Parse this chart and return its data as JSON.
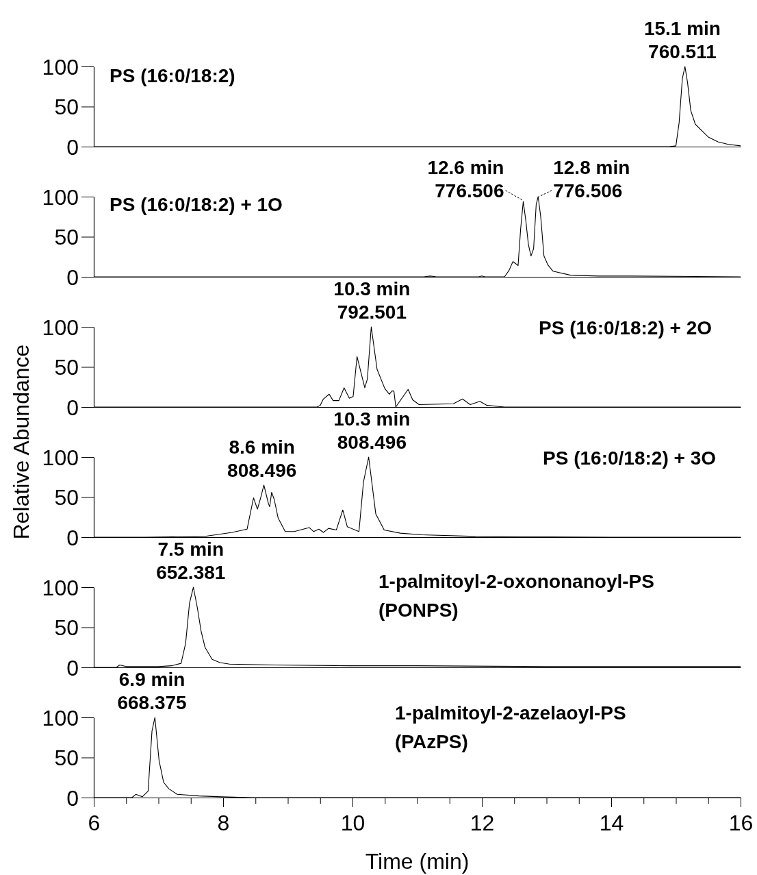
{
  "chart_data": [
    {
      "type": "line",
      "title": "PS (16:0/18:2)",
      "xlim": [
        6,
        16
      ],
      "ylim": [
        0,
        100
      ],
      "yticks": [
        0,
        50,
        100
      ],
      "tick_labels": "y",
      "annotations": [
        {
          "text": "15.1 min\n760.511",
          "x": 15.1,
          "y": 100
        }
      ],
      "series": [
        {
          "color": "#000000",
          "x": [
            6,
            14.9,
            15.0,
            15.05,
            15.1,
            15.14,
            15.18,
            15.23,
            15.3,
            15.4,
            15.5,
            15.65,
            15.8,
            16
          ],
          "values": [
            0,
            0,
            1,
            30,
            85,
            100,
            80,
            45,
            28,
            20,
            12,
            6,
            3,
            1
          ]
        }
      ]
    },
    {
      "type": "line",
      "title": "PS (16:0/18:2) + 1O",
      "xlim": [
        6,
        16
      ],
      "ylim": [
        0,
        100
      ],
      "yticks": [
        0,
        50,
        100
      ],
      "tick_labels": "y",
      "annotations": [
        {
          "text": "12.6 min\n776.506",
          "x": 12.64,
          "y": 94
        },
        {
          "text": "12.8 min\n776.506",
          "x": 12.87,
          "y": 100
        }
      ],
      "series": [
        {
          "color": "#000000",
          "x": [
            6,
            11.1,
            11.2,
            11.3,
            11.95,
            12.0,
            12.05,
            12.35,
            12.42,
            12.48,
            12.53,
            12.56,
            12.6,
            12.64,
            12.68,
            12.72,
            12.76,
            12.8,
            12.84,
            12.87,
            12.91,
            12.96,
            13.02,
            13.1,
            13.37,
            13.8,
            14.3,
            16
          ],
          "values": [
            0,
            0,
            1,
            0,
            0,
            1,
            0,
            0,
            8,
            19,
            16,
            14,
            60,
            94,
            70,
            40,
            26,
            35,
            90,
            100,
            75,
            26,
            15,
            7,
            2,
            1,
            1,
            0
          ]
        }
      ]
    },
    {
      "type": "line",
      "title": "PS (16:0/18:2) + 2O",
      "xlim": [
        6,
        16
      ],
      "ylim": [
        0,
        100
      ],
      "yticks": [
        0,
        50,
        100
      ],
      "tick_labels": "y",
      "ylabel": "Relative Abundance",
      "annotations": [
        {
          "text": "10.3 min\n792.501",
          "x": 10.3,
          "y": 100
        }
      ],
      "series": [
        {
          "color": "#000000",
          "x": [
            6,
            9.45,
            9.5,
            9.55,
            9.64,
            9.7,
            9.79,
            9.87,
            9.95,
            10.01,
            10.07,
            10.19,
            10.23,
            10.29,
            10.38,
            10.5,
            10.57,
            10.61,
            10.64,
            10.67,
            10.73,
            10.86,
            10.93,
            11.03,
            11.56,
            11.7,
            11.82,
            11.97,
            12.08,
            12.35,
            16
          ],
          "values": [
            0,
            0,
            2,
            10,
            16,
            8,
            8,
            24,
            11,
            13,
            63,
            24,
            35,
            100,
            47,
            23,
            16,
            20,
            20,
            0,
            7,
            22,
            9,
            3,
            4,
            10,
            3,
            7,
            2,
            0,
            0
          ]
        }
      ]
    },
    {
      "type": "line",
      "title": "PS (16:0/18:2) + 3O",
      "xlim": [
        6,
        16
      ],
      "ylim": [
        0,
        100
      ],
      "yticks": [
        0,
        50,
        100
      ],
      "tick_labels": "y",
      "annotations": [
        {
          "text": "8.6 min\n808.496",
          "x": 8.6,
          "y": 65
        },
        {
          "text": "10.3 min\n808.496",
          "x": 10.3,
          "y": 100
        }
      ],
      "series": [
        {
          "color": "#000000",
          "x": [
            6,
            6.8,
            7.72,
            8.14,
            8.37,
            8.47,
            8.53,
            8.58,
            8.63,
            8.7,
            8.72,
            8.75,
            8.79,
            8.85,
            8.96,
            9.1,
            9.33,
            9.4,
            9.48,
            9.55,
            9.63,
            9.75,
            9.85,
            9.92,
            10.1,
            10.17,
            10.25,
            10.36,
            10.49,
            10.74,
            11.07,
            11.9,
            14,
            16
          ],
          "values": [
            0,
            0,
            1,
            6,
            10,
            49,
            35,
            49,
            65,
            42,
            38,
            56,
            47,
            24,
            7,
            7,
            12,
            7,
            10,
            6,
            11,
            9,
            34,
            13,
            7,
            69,
            100,
            29,
            9,
            5,
            3,
            1,
            0,
            0
          ]
        }
      ]
    },
    {
      "type": "line",
      "title": "1-palmitoyl-2-oxononanoyl-PS",
      "subtitle": "(PONPS)",
      "xlim": [
        6,
        16
      ],
      "ylim": [
        0,
        100
      ],
      "yticks": [
        0,
        50,
        100
      ],
      "tick_labels": "y",
      "annotations": [
        {
          "text": "7.5 min\n652.381",
          "x": 7.5,
          "y": 100
        }
      ],
      "series": [
        {
          "color": "#000000",
          "x": [
            6,
            6.35,
            6.4,
            6.5,
            7.0,
            7.2,
            7.35,
            7.42,
            7.48,
            7.54,
            7.6,
            7.66,
            7.72,
            7.83,
            7.95,
            8.1,
            8.8,
            10,
            11,
            13,
            15,
            16
          ],
          "values": [
            0,
            0,
            3,
            1,
            1,
            2,
            5,
            30,
            80,
            100,
            75,
            45,
            25,
            10,
            6,
            4,
            3,
            2,
            2,
            1,
            1,
            1
          ]
        }
      ]
    },
    {
      "type": "line",
      "title": "1-palmitoyl-2-azelaoyl-PS",
      "subtitle": "(PAzPS)",
      "xlabel": "Time (min)",
      "xlim": [
        6,
        16
      ],
      "ylim": [
        0,
        100
      ],
      "xticks": [
        6,
        {
          "value": 6.5,
          "label": null
        },
        {
          "value": 7,
          "label": null
        },
        {
          "value": 7.5,
          "label": null
        },
        8,
        {
          "value": 8.5,
          "label": null
        },
        {
          "value": 9,
          "label": null
        },
        {
          "value": 9.5,
          "label": null
        },
        10,
        {
          "value": 10.5,
          "label": null
        },
        {
          "value": 11,
          "label": null
        },
        {
          "value": 11.5,
          "label": null
        },
        12,
        {
          "value": 12.5,
          "label": null
        },
        {
          "value": 13,
          "label": null
        },
        {
          "value": 13.5,
          "label": null
        },
        14,
        {
          "value": 14.5,
          "label": null
        },
        {
          "value": 15,
          "label": null
        },
        {
          "value": 15.5,
          "label": null
        },
        16
      ],
      "yticks": [
        0,
        50,
        100
      ],
      "annotations": [
        {
          "text": "6.9 min\n668.375",
          "x": 6.9,
          "y": 100
        }
      ],
      "series": [
        {
          "color": "#000000",
          "x": [
            6,
            6.59,
            6.65,
            6.75,
            6.84,
            6.9,
            6.945,
            7.01,
            7.08,
            7.16,
            7.29,
            7.63,
            7.97,
            8.44,
            16
          ],
          "values": [
            0,
            0,
            4,
            1,
            8,
            83,
            100,
            46,
            19,
            11,
            4,
            2,
            1,
            0,
            0
          ]
        }
      ]
    }
  ]
}
